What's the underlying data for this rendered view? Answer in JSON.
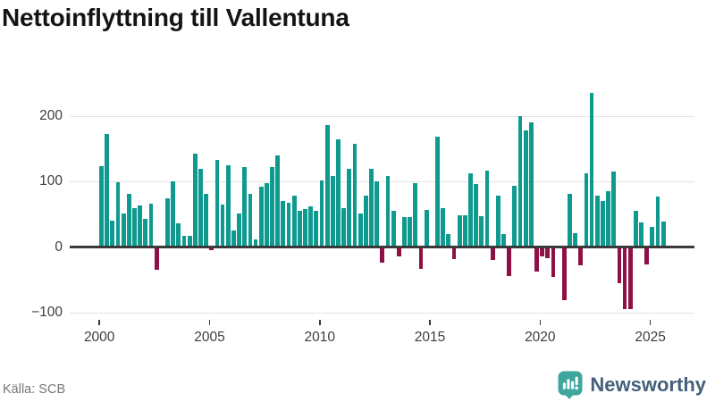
{
  "title": "Nettoinflyttning till Vallentuna",
  "source": "Källa: SCB",
  "branding": {
    "name": "Newsworthy",
    "icon": "newsworthy-speech-bubble-chart-icon"
  },
  "colors": {
    "positive_bar": "#0f9a8f",
    "negative_bar": "#8f1044",
    "baseline": "#3a3a3a",
    "gridline": "#e3e3e3",
    "axis_text": "#3d3d3d",
    "title_text": "#141414",
    "source_text": "#767676",
    "brand_text": "#45607b",
    "brand_icon": "#3ea69c"
  },
  "chart_data": {
    "type": "bar",
    "title": "Nettoinflyttning till Vallentuna",
    "xlabel": "",
    "ylabel": "",
    "frequency": "quarterly",
    "start_period": "2000Q1",
    "end_period": "2025Q3",
    "x_tick_labels": [
      "2000",
      "2005",
      "2010",
      "2015",
      "2020",
      "2025"
    ],
    "y_ticks": [
      200,
      100,
      0,
      -100
    ],
    "y_tick_labels": [
      "200",
      "100",
      "0",
      "−100"
    ],
    "ylim": [
      -110,
      240
    ],
    "grid": "horizontal",
    "legend": "none",
    "values": [
      123,
      173,
      41,
      99,
      52,
      81,
      59,
      64,
      43,
      67,
      -34,
      0,
      74,
      101,
      36,
      17,
      18,
      143,
      120,
      82,
      -5,
      133,
      65,
      125,
      25,
      51,
      122,
      82,
      12,
      92,
      98,
      122,
      140,
      71,
      68,
      78,
      56,
      58,
      62,
      55,
      102,
      187,
      109,
      164,
      59,
      120,
      158,
      51,
      79,
      119,
      100,
      -23,
      108,
      55,
      -14,
      46,
      46,
      98,
      -33,
      57,
      0,
      168,
      59,
      20,
      -18,
      49,
      49,
      113,
      96,
      47,
      117,
      -19,
      79,
      20,
      -44,
      93,
      200,
      178,
      190,
      -37,
      -14,
      -17,
      -46,
      0,
      -81,
      82,
      22,
      -27,
      113,
      235,
      78,
      71,
      85,
      115,
      -55,
      -95,
      -95,
      56,
      38,
      -26,
      31,
      77,
      39
    ]
  }
}
